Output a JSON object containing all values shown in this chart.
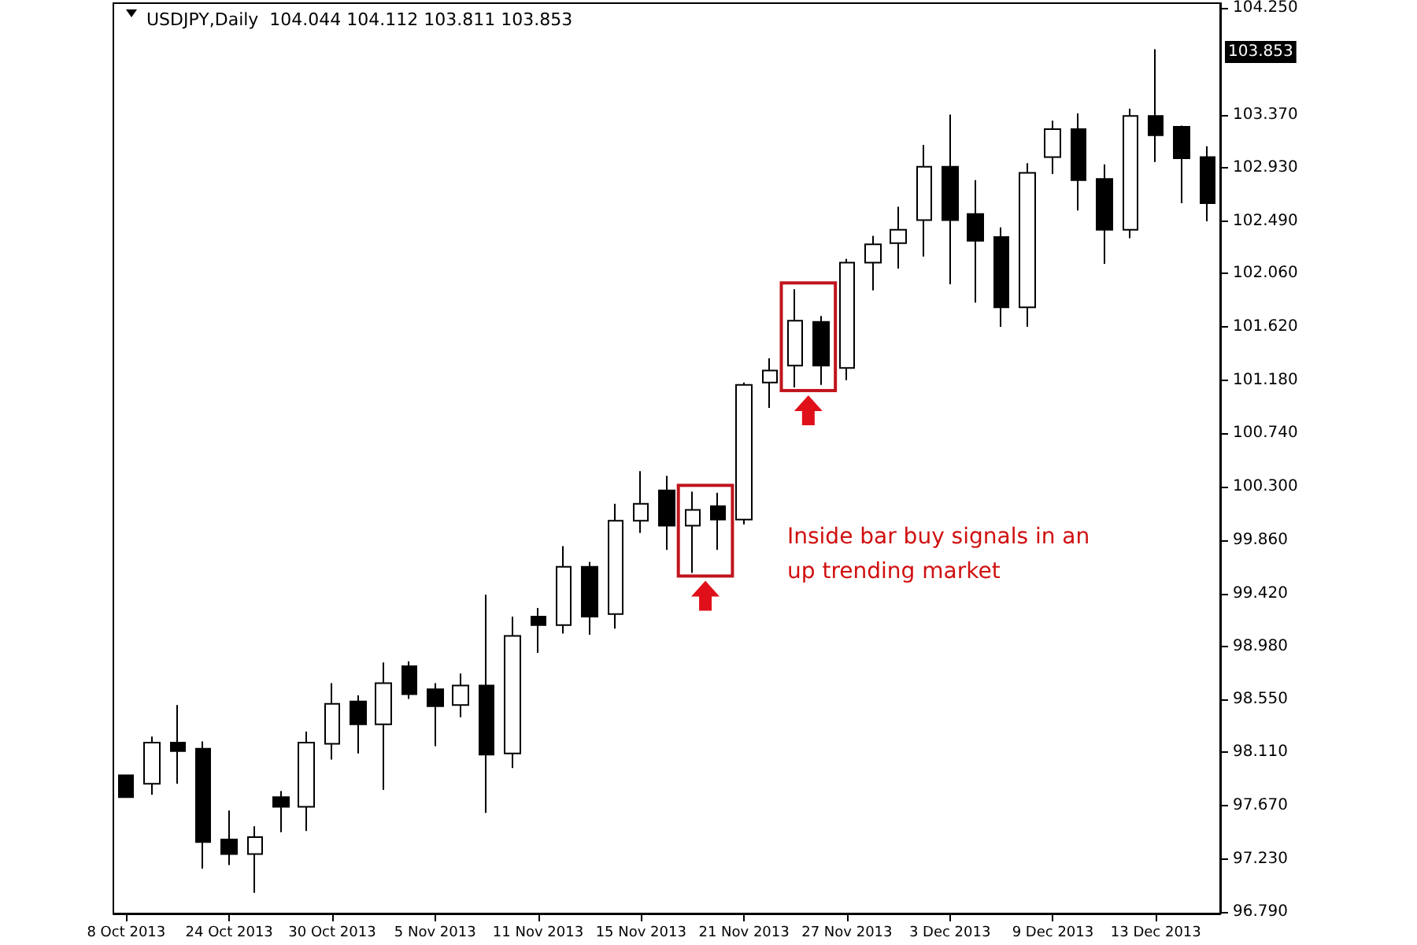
{
  "chart_data": {
    "type": "candlestick",
    "title": "USDJPY,Daily  104.044 104.112 103.811 103.853",
    "categories": [
      "8 Oct 2013",
      null,
      null,
      null,
      "24 Oct 2013",
      null,
      null,
      null,
      "30 Oct 2013",
      null,
      null,
      null,
      "5 Nov 2013",
      null,
      null,
      null,
      "11 Nov 2013",
      null,
      null,
      null,
      "15 Nov 2013",
      null,
      null,
      null,
      "21 Nov 2013",
      null,
      null,
      null,
      "27 Nov 2013",
      null,
      null,
      null,
      "3 Dec 2013",
      null,
      null,
      null,
      "9 Dec 2013",
      null,
      null,
      null,
      "13 Dec 2013",
      null,
      null
    ],
    "ohlc": [
      [
        97.92,
        97.92,
        97.74,
        97.74
      ],
      [
        97.85,
        98.24,
        97.76,
        98.19
      ],
      [
        98.19,
        98.5,
        97.85,
        98.12
      ],
      [
        98.14,
        98.2,
        97.15,
        97.37
      ],
      [
        97.39,
        97.63,
        97.18,
        97.27
      ],
      [
        97.27,
        97.5,
        96.95,
        97.41
      ],
      [
        97.74,
        97.79,
        97.45,
        97.66
      ],
      [
        97.66,
        98.28,
        97.46,
        98.19
      ],
      [
        98.18,
        98.68,
        98.05,
        98.51
      ],
      [
        98.53,
        98.58,
        98.1,
        98.34
      ],
      [
        98.34,
        98.85,
        97.8,
        98.68
      ],
      [
        98.82,
        98.86,
        98.55,
        98.59
      ],
      [
        98.63,
        98.68,
        98.16,
        98.49
      ],
      [
        98.5,
        98.76,
        98.4,
        98.66
      ],
      [
        98.66,
        99.41,
        97.61,
        98.09
      ],
      [
        98.1,
        99.23,
        97.98,
        99.07
      ],
      [
        99.23,
        99.3,
        98.93,
        99.16
      ],
      [
        99.16,
        99.81,
        99.09,
        99.64
      ],
      [
        99.64,
        99.68,
        99.08,
        99.23
      ],
      [
        99.25,
        100.16,
        99.13,
        100.02
      ],
      [
        100.02,
        100.43,
        99.92,
        100.16
      ],
      [
        100.27,
        100.39,
        99.78,
        99.98
      ],
      [
        99.98,
        100.26,
        99.59,
        100.11
      ],
      [
        100.14,
        100.25,
        99.78,
        100.03
      ],
      [
        100.03,
        101.16,
        99.99,
        101.14
      ],
      [
        101.16,
        101.36,
        100.95,
        101.26
      ],
      [
        101.3,
        101.93,
        101.12,
        101.67
      ],
      [
        101.66,
        101.71,
        101.14,
        101.3
      ],
      [
        101.28,
        102.18,
        101.18,
        102.15
      ],
      [
        102.15,
        102.37,
        101.92,
        102.3
      ],
      [
        102.31,
        102.61,
        102.1,
        102.42
      ],
      [
        102.5,
        103.12,
        102.2,
        102.94
      ],
      [
        102.94,
        103.37,
        101.97,
        102.5
      ],
      [
        102.55,
        102.83,
        101.82,
        102.33
      ],
      [
        102.36,
        102.44,
        101.62,
        101.78
      ],
      [
        101.78,
        102.97,
        101.62,
        102.89
      ],
      [
        103.02,
        103.32,
        102.88,
        103.25
      ],
      [
        103.25,
        103.38,
        102.58,
        102.83
      ],
      [
        102.84,
        102.96,
        102.14,
        102.42
      ],
      [
        102.42,
        103.42,
        102.35,
        103.36
      ],
      [
        103.36,
        103.91,
        102.98,
        103.2
      ],
      [
        103.27,
        103.28,
        102.64,
        103.01
      ],
      [
        103.02,
        103.11,
        102.49,
        102.64
      ]
    ],
    "ylim": [
      96.78,
      104.29
    ],
    "yticks": [
      {
        "value": 96.79,
        "label": "96.790"
      },
      {
        "value": 97.23,
        "label": "97.230"
      },
      {
        "value": 97.67,
        "label": "97.670"
      },
      {
        "value": 98.11,
        "label": "98.110"
      },
      {
        "value": 98.55,
        "label": "98.550"
      },
      {
        "value": 98.98,
        "label": "98.980"
      },
      {
        "value": 99.42,
        "label": "99.420"
      },
      {
        "value": 99.86,
        "label": "99.860"
      },
      {
        "value": 100.3,
        "label": "100.300"
      },
      {
        "value": 100.74,
        "label": "100.740"
      },
      {
        "value": 101.18,
        "label": "101.180"
      },
      {
        "value": 101.62,
        "label": "101.620"
      },
      {
        "value": 102.06,
        "label": "102.060"
      },
      {
        "value": 102.49,
        "label": "102.490"
      },
      {
        "value": 102.93,
        "label": "102.930"
      },
      {
        "value": 103.37,
        "label": "103.370"
      },
      {
        "value": 104.25,
        "label": "104.250"
      }
    ],
    "annotations": [
      "Inside bar buy signals in an up trending market",
      "103.853"
    ],
    "grid": false
  }
}
